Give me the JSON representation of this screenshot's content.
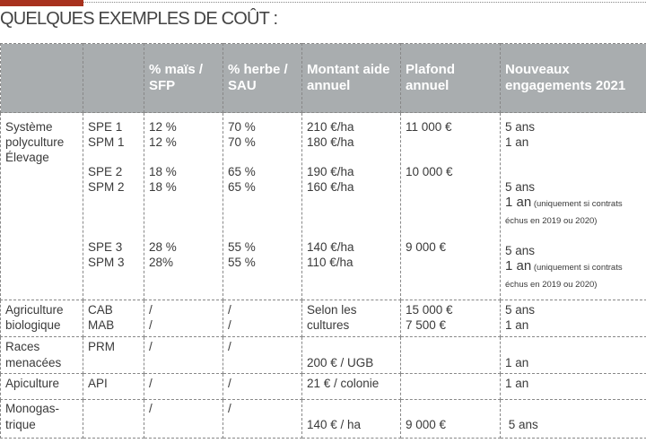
{
  "title": "QUELQUES EXEMPLES DE COÛT :",
  "headers": [
    "",
    "",
    "% maïs / SFP",
    "% herbe / SAU",
    "Montant aide annuel",
    "Plafond annuel",
    "Nouveaux engagements 2021"
  ],
  "rows": [
    {
      "category": [
        "Système",
        "polyculture",
        "Élevage"
      ],
      "codes": [
        "SPE 1",
        "SPM 1",
        "",
        "SPE 2",
        "SPM 2",
        "",
        "",
        "",
        "SPE 3",
        "SPM 3"
      ],
      "mais": [
        "12 %",
        "12 %",
        "",
        "18 %",
        "18 %",
        "",
        "",
        "",
        "28 %",
        "28%"
      ],
      "herbe": [
        "70 %",
        "70 %",
        "",
        "65 %",
        "65 %",
        "",
        "",
        "",
        "55 %",
        "55 %"
      ],
      "montant": [
        "210 €/ha",
        "180 €/ha",
        "",
        "190 €/ha",
        "160 €/ha",
        "",
        "",
        "",
        "140 €/ha",
        "110 €/ha"
      ],
      "plafond": [
        "11 000 €",
        "",
        "",
        "10 000 €",
        "",
        "",
        "",
        "",
        "9 000 €",
        ""
      ],
      "engagements": [
        {
          "main": "5 ans"
        },
        {
          "main": "1 an"
        },
        {
          "main": ""
        },
        {
          "main": ""
        },
        {
          "main": "5 ans"
        },
        {
          "main": "1 an",
          "note": " (uniquement si contrats"
        },
        {
          "main": "",
          "note": "échus en 2019 ou 2020)"
        },
        {
          "main": ""
        },
        {
          "main": "5 ans"
        },
        {
          "main": "1 an",
          "note": " (uniquement si contrats"
        },
        {
          "main": "",
          "note": "échus en 2019 ou 2020)"
        }
      ]
    },
    {
      "category": [
        "Agriculture",
        "biologique"
      ],
      "codes": [
        "CAB",
        "MAB"
      ],
      "mais": [
        "/",
        "/"
      ],
      "herbe": [
        "/",
        "/"
      ],
      "montant": [
        "Selon les",
        "cultures"
      ],
      "plafond": [
        "15 000 €",
        "7 500 €"
      ],
      "engagements": [
        {
          "main": "5 ans"
        },
        {
          "main": "1 an"
        }
      ]
    },
    {
      "category": [
        "Races",
        "menacées"
      ],
      "codes": [
        "PRM"
      ],
      "mais": [
        "/"
      ],
      "herbe": [
        "/"
      ],
      "montant": [
        "",
        "200 € / UGB"
      ],
      "plafond": [
        ""
      ],
      "engagements": [
        {
          "main": ""
        },
        {
          "main": "1 an"
        }
      ]
    },
    {
      "category": [
        "Apiculture"
      ],
      "codes": [
        "API"
      ],
      "mais": [
        "/"
      ],
      "herbe": [
        "/"
      ],
      "montant": [
        "21 € / colonie"
      ],
      "plafond": [
        ""
      ],
      "engagements": [
        {
          "main": "1 an"
        }
      ]
    },
    {
      "category": [
        "Monogas-",
        "trique"
      ],
      "codes": [
        ""
      ],
      "mais": [
        "/"
      ],
      "herbe": [
        "/"
      ],
      "montant": [
        "",
        "140 € / ha"
      ],
      "plafond": [
        "",
        "9 000 €"
      ],
      "engagements": [
        {
          "main": ""
        },
        {
          "main": " 5 ans"
        }
      ]
    }
  ],
  "accent": "#a8321e",
  "header_bg": "#a9adaf"
}
